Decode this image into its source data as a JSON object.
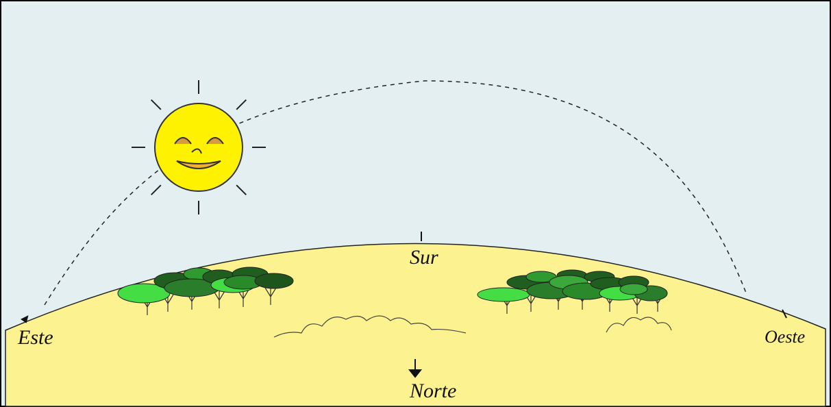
{
  "labels": {
    "east": "Este",
    "south": "Sur",
    "west": "Oeste",
    "north": "Norte"
  }
}
